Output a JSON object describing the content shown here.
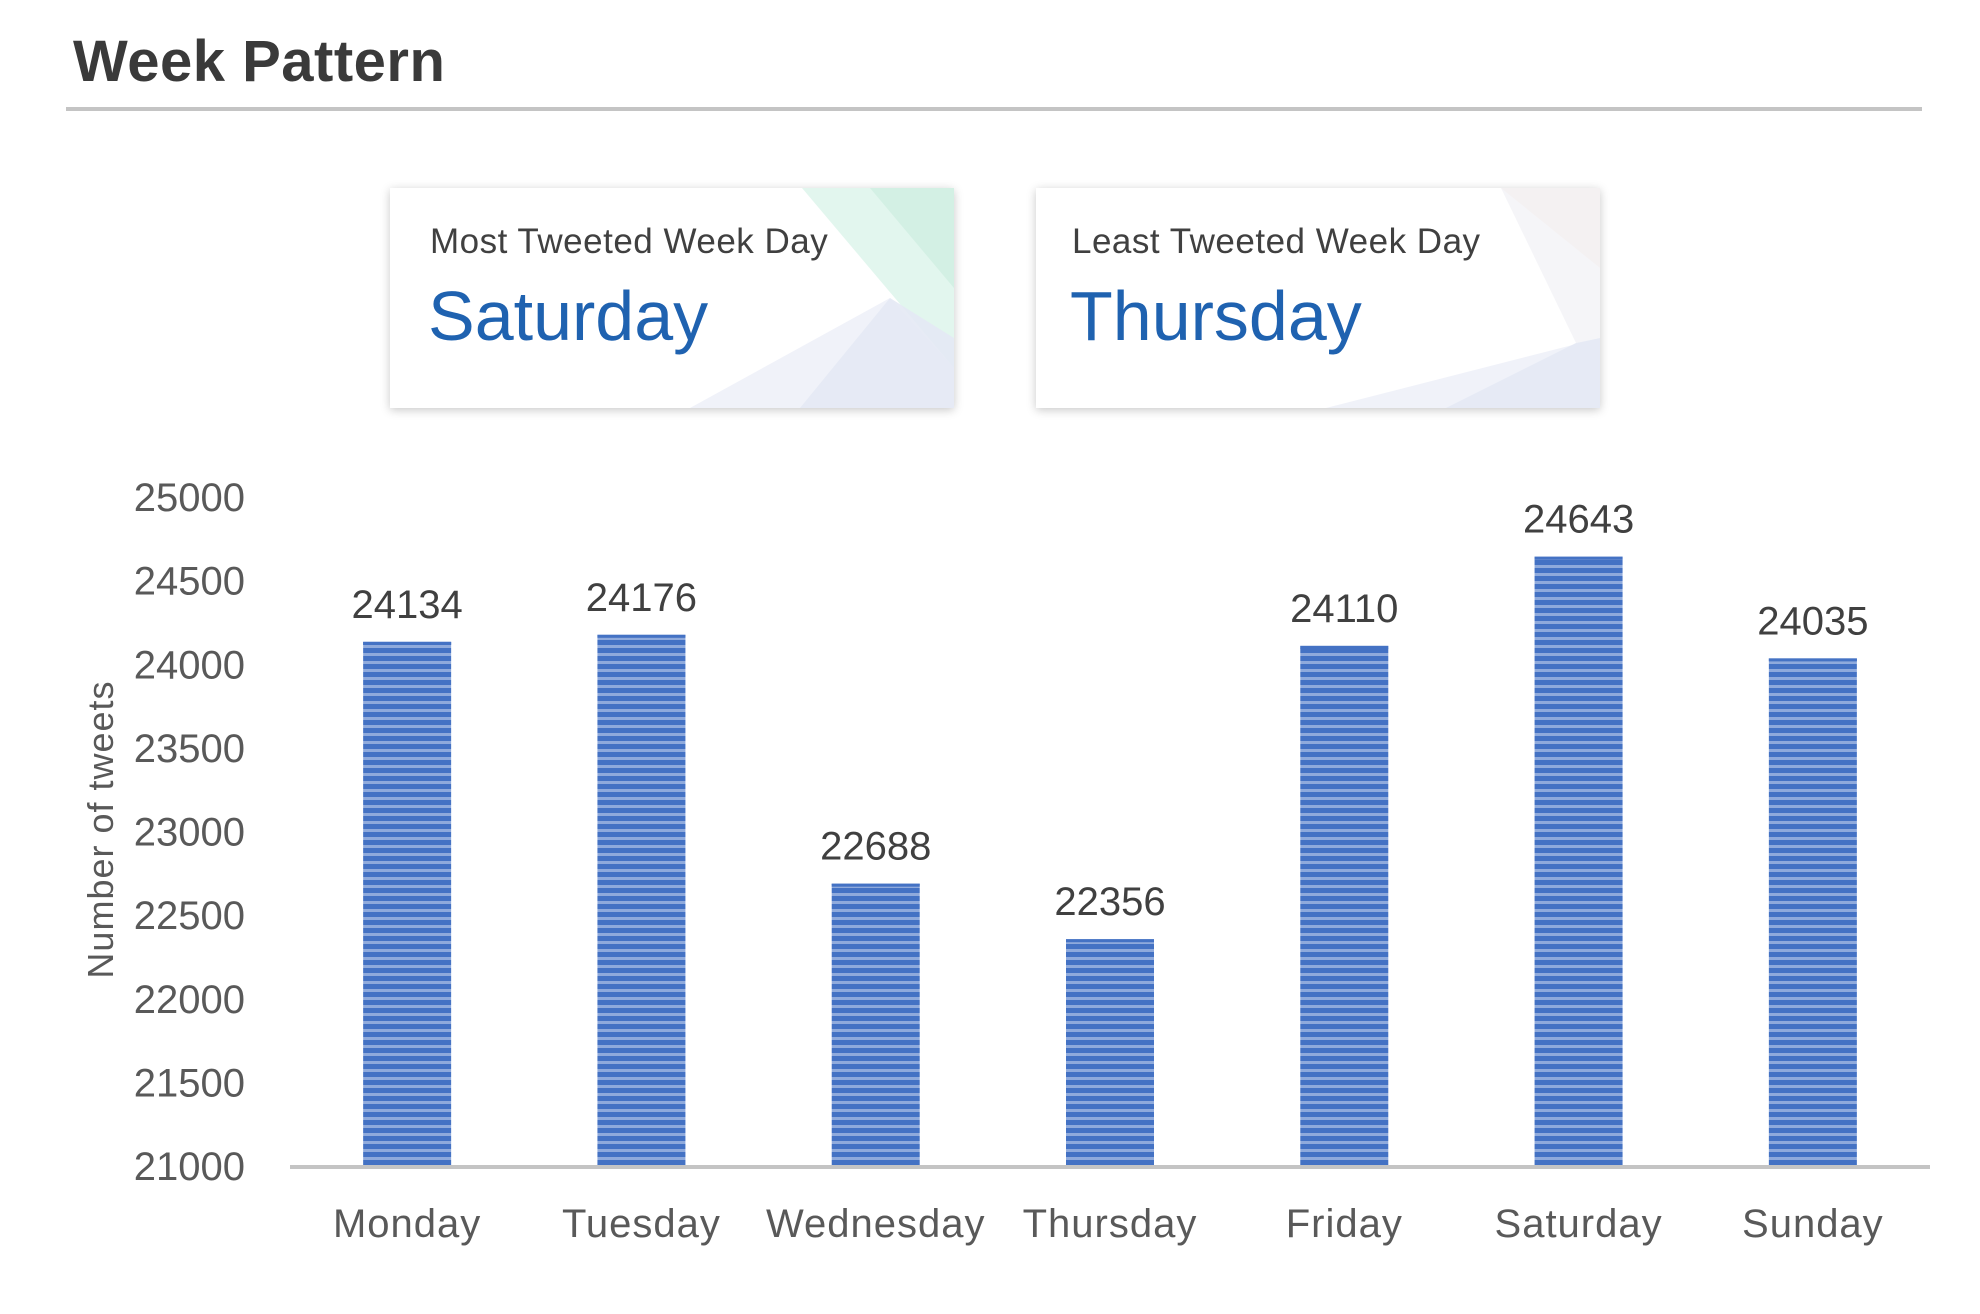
{
  "page": {
    "title": "Week Pattern"
  },
  "kpis": {
    "most": {
      "label": "Most Tweeted Week Day",
      "value": "Saturday",
      "accent": "#d9f4ea"
    },
    "least": {
      "label": "Least Tweeted Week Day",
      "value": "Thursday",
      "accent": "#fbe7dc"
    }
  },
  "colors": {
    "bar": "#4472c4",
    "bar_stripe": "#8faadc",
    "value_text": "#1f62b0",
    "axis": "#c4c4c4"
  },
  "chart_data": {
    "type": "bar",
    "title": "",
    "xlabel": "",
    "ylabel": "Number of tweets",
    "categories": [
      "Monday",
      "Tuesday",
      "Wednesday",
      "Thursday",
      "Friday",
      "Saturday",
      "Sunday"
    ],
    "values": [
      24134,
      24176,
      22688,
      22356,
      24110,
      24643,
      24035
    ],
    "ylim": [
      21000,
      25000
    ],
    "yticks": [
      25000,
      24500,
      24000,
      23500,
      23000,
      22500,
      22000,
      21500,
      21000
    ],
    "data_labels": true,
    "grid": false,
    "legend": "none"
  }
}
